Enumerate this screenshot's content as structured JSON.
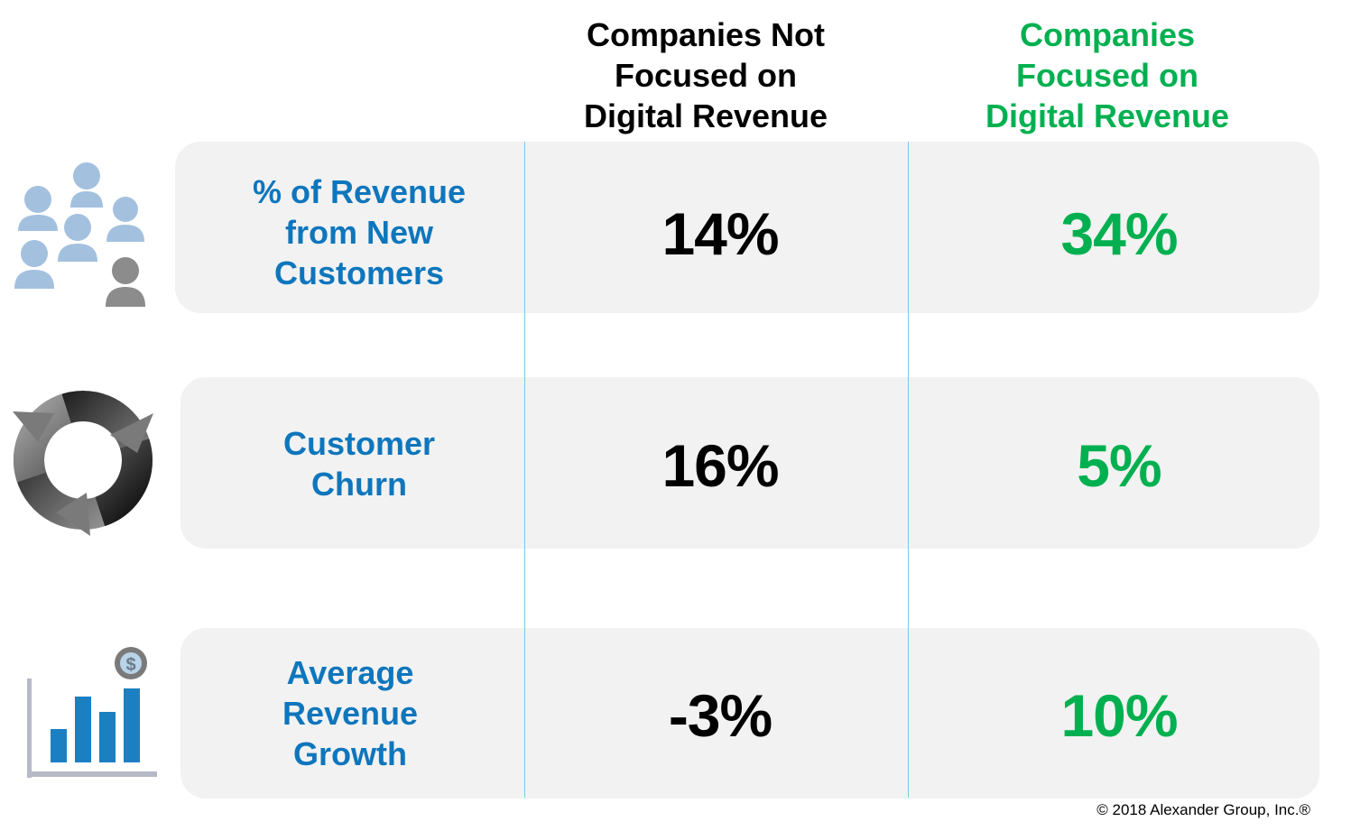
{
  "header": {
    "not_focused": [
      "Companies Not",
      "Focused on",
      "Digital Revenue"
    ],
    "focused": [
      "Companies",
      "Focused on",
      "Digital Revenue"
    ]
  },
  "rows": [
    {
      "label": [
        "% of Revenue",
        "from New",
        "Customers"
      ],
      "icon": "people-group-icon",
      "not_focused_value": "14%",
      "focused_value": "34%"
    },
    {
      "label": [
        "Customer",
        "Churn"
      ],
      "icon": "churn-cycle-arrows-icon",
      "not_focused_value": "16%",
      "focused_value": "5%"
    },
    {
      "label": [
        "Average",
        "Revenue",
        "Growth"
      ],
      "icon": "revenue-growth-bar-chart-icon",
      "not_focused_value": "-3%",
      "focused_value": "10%"
    }
  ],
  "footer": {
    "copyright": "© 2018 Alexander Group, Inc.®"
  },
  "colors": {
    "label_blue": "#0e76bc",
    "focused_green": "#00b050",
    "row_background": "#f2f2f2",
    "divider": "#7ec8e8"
  }
}
